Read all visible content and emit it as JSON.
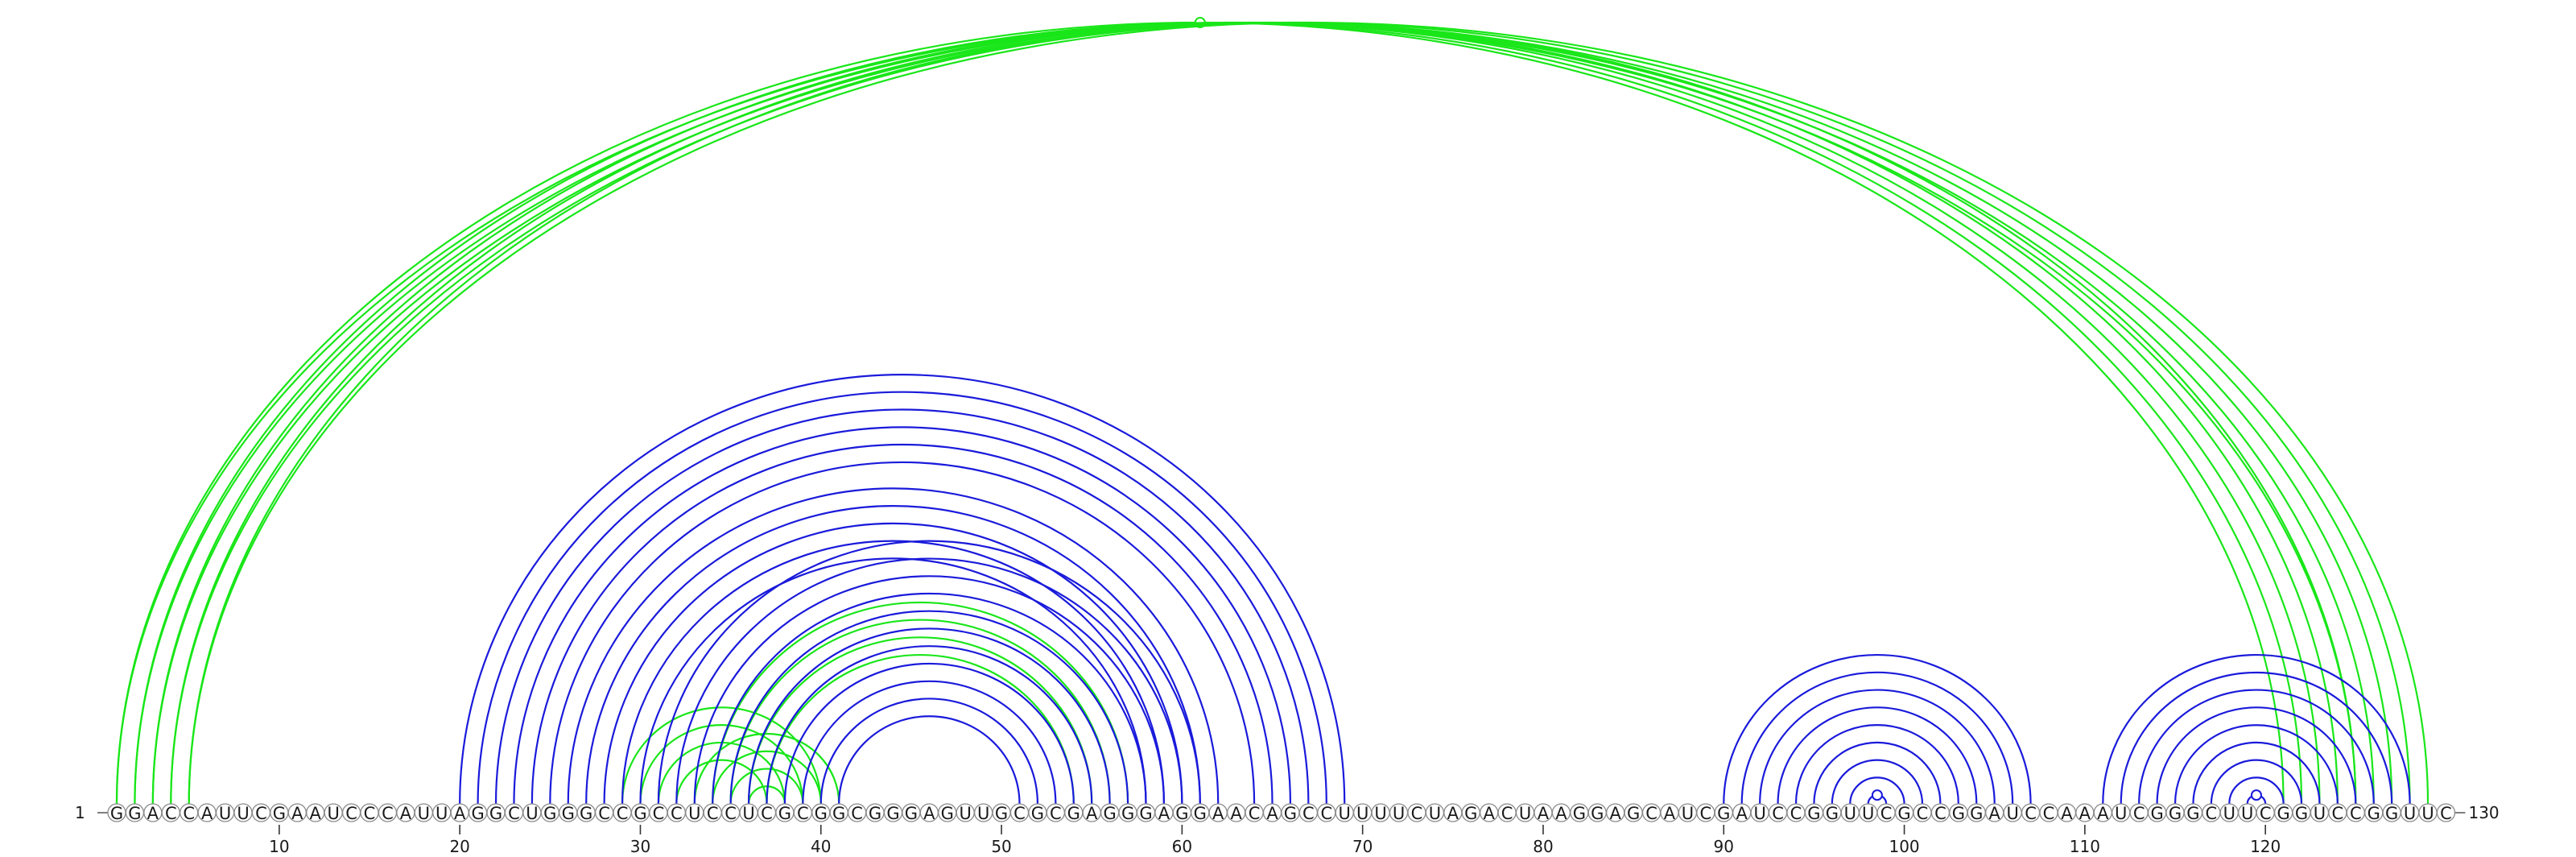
{
  "diagram": {
    "type": "rna-arc-diagram",
    "sequence": "GGACCAUUCGAAUCCCAUUAGGCUGGGCCGCCUCCUCGCGGCGGGAGUUGCGCGAGGGAGGAACAGCCUUUUCUAGACUAAGGAGCAUCGAUCCGGUUCGCCGGAUCCAAAUCGGGCUUCGGUCCGGUUC",
    "length": 130,
    "start_label": "1",
    "end_label": "130",
    "tick_labels": [
      "10",
      "20",
      "30",
      "40",
      "50",
      "60",
      "70",
      "80",
      "90",
      "100",
      "110",
      "120"
    ],
    "colors": {
      "primary_arcs": "#1a1adb",
      "alternative_arcs": "#19e619"
    },
    "arc_groups": [
      {
        "color": "alternative",
        "pairs": [
          [
            1,
            121
          ],
          [
            2,
            122
          ],
          [
            3,
            123
          ],
          [
            4,
            124
          ],
          [
            5,
            125
          ],
          [
            1,
            125
          ],
          [
            2,
            126
          ],
          [
            3,
            127
          ],
          [
            4,
            128
          ],
          [
            5,
            129
          ]
        ],
        "marker_on_pair": 0
      },
      {
        "color": "alternative",
        "pairs": [
          [
            29,
            40
          ],
          [
            30,
            39
          ],
          [
            31,
            38
          ],
          [
            32,
            37
          ],
          [
            33,
            41
          ],
          [
            34,
            40
          ],
          [
            35,
            39
          ],
          [
            36,
            38
          ],
          [
            34,
            57
          ],
          [
            35,
            56
          ],
          [
            36,
            55
          ],
          [
            37,
            54
          ]
        ]
      },
      {
        "color": "primary",
        "pairs": [
          [
            20,
            69
          ],
          [
            21,
            68
          ],
          [
            22,
            67
          ],
          [
            23,
            66
          ],
          [
            24,
            65
          ],
          [
            25,
            64
          ],
          [
            26,
            62
          ],
          [
            27,
            61
          ],
          [
            28,
            60
          ],
          [
            29,
            59
          ],
          [
            30,
            58
          ]
        ]
      },
      {
        "color": "primary",
        "pairs": [
          [
            31,
            61
          ],
          [
            32,
            60
          ],
          [
            33,
            59
          ],
          [
            34,
            58
          ],
          [
            35,
            57
          ],
          [
            36,
            56
          ],
          [
            37,
            55
          ],
          [
            38,
            54
          ],
          [
            39,
            53
          ],
          [
            40,
            52
          ],
          [
            41,
            51
          ]
        ]
      },
      {
        "color": "primary",
        "pairs": [
          [
            90,
            107
          ],
          [
            91,
            106
          ],
          [
            92,
            105
          ],
          [
            93,
            104
          ],
          [
            94,
            103
          ],
          [
            95,
            102
          ],
          [
            96,
            101
          ],
          [
            97,
            100
          ],
          [
            98,
            99
          ]
        ],
        "marker_on_pair": 8
      },
      {
        "color": "primary",
        "pairs": [
          [
            111,
            128
          ],
          [
            112,
            127
          ],
          [
            113,
            126
          ],
          [
            114,
            125
          ],
          [
            115,
            124
          ],
          [
            116,
            123
          ],
          [
            117,
            122
          ],
          [
            118,
            121
          ],
          [
            119,
            120
          ]
        ],
        "marker_on_pair": 8
      }
    ]
  }
}
